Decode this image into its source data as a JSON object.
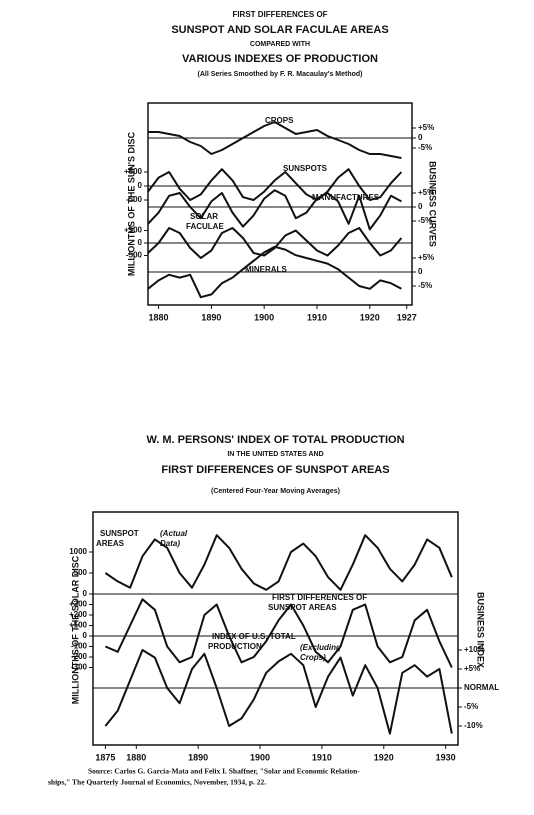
{
  "chart_data": [
    {
      "type": "line",
      "title_lines": [
        "FIRST DIFFERENCES OF",
        "SUNSPOT AND SOLAR FACULAE AREAS",
        "COMPARED WITH",
        "VARIOUS INDEXES OF PRODUCTION",
        "(All Series Smoothed by F. R. Macaulay's Method)"
      ],
      "ylabel": "MILLIONTHS OF THE SUN'S DISC",
      "y2label": "BUSINESS CURVES",
      "x": [
        1878,
        1880,
        1882,
        1884,
        1886,
        1888,
        1890,
        1892,
        1894,
        1896,
        1898,
        1900,
        1902,
        1904,
        1906,
        1908,
        1910,
        1912,
        1914,
        1916,
        1918,
        1920,
        1922,
        1924,
        1926
      ],
      "xlim": [
        1878,
        1928
      ],
      "xticks": [
        1880,
        1890,
        1900,
        1910,
        1920,
        1927
      ],
      "color": "#111111",
      "panels": [
        {
          "label": [
            "CROPS"
          ],
          "axis": "y2",
          "ylim": [
            -12,
            12
          ],
          "ticks": [
            {
              "value": 5,
              "label": "+5%"
            },
            0,
            {
              "value": -5,
              "label": "-5%"
            }
          ],
          "values": [
            3,
            3,
            2,
            1,
            -2,
            -4,
            -8,
            -6,
            -3,
            0,
            3,
            6,
            8,
            5,
            2,
            3,
            4,
            1,
            -1,
            -3,
            -6,
            -8,
            -8,
            -9,
            -10
          ]
        },
        {
          "label": [
            "SUNSPOTS"
          ],
          "axis": "y",
          "ylim": [
            -1000,
            1000
          ],
          "ticks": [
            {
              "value": 500,
              "label": "+500"
            },
            0,
            -500
          ],
          "values": [
            -200,
            300,
            500,
            -100,
            -500,
            -300,
            200,
            600,
            200,
            -400,
            -500,
            -200,
            200,
            500,
            100,
            -300,
            -500,
            -200,
            300,
            600,
            0,
            -500,
            -400,
            100,
            500
          ]
        },
        {
          "label": [
            "MANUFACTURES"
          ],
          "axis": "y2",
          "ylim": [
            -10,
            10
          ],
          "ticks": [
            {
              "value": 5,
              "label": "+5%"
            },
            0,
            {
              "value": -5,
              "label": "-5%"
            }
          ],
          "values": [
            -6,
            -2,
            4,
            5,
            0,
            -4,
            2,
            5,
            -2,
            -7,
            -3,
            3,
            6,
            4,
            -4,
            -2,
            3,
            5,
            2,
            -6,
            4,
            -8,
            -3,
            4,
            2
          ]
        },
        {
          "label": [
            "SOLAR",
            "FACULAE"
          ],
          "axis": "y",
          "ylim": [
            -1000,
            1000
          ],
          "ticks": [
            {
              "value": 500,
              "label": "+500"
            },
            0,
            -500
          ],
          "values": [
            -400,
            0,
            600,
            400,
            -200,
            -600,
            -300,
            400,
            600,
            200,
            -400,
            -500,
            -200,
            300,
            500,
            100,
            -300,
            -500,
            -100,
            400,
            600,
            0,
            -500,
            -300,
            200
          ]
        },
        {
          "label": [
            "MINERALS"
          ],
          "axis": "y2",
          "ylim": [
            -12,
            12
          ],
          "ticks": [
            {
              "value": 5,
              "label": "+5%"
            },
            0,
            {
              "value": -5,
              "label": "-5%"
            }
          ],
          "values": [
            -6,
            -3,
            -1,
            -2,
            -1,
            -9,
            -8,
            -4,
            -2,
            1,
            4,
            7,
            9,
            8,
            6,
            5,
            4,
            3,
            1,
            -2,
            -5,
            -6,
            -3,
            -4,
            -6
          ]
        }
      ]
    },
    {
      "type": "line",
      "title_lines": [
        "W. M. PERSONS' INDEX OF TOTAL PRODUCTION",
        "IN THE UNITED STATES AND",
        "FIRST DIFFERENCES OF SUNSPOT AREAS",
        "(Centered Four-Year Moving Averages)"
      ],
      "ylabel": "MILLIONTHS OF THE SOLAR DISC",
      "y2label": "BUSINESS INDEX",
      "x": [
        1875,
        1877,
        1879,
        1881,
        1883,
        1885,
        1887,
        1889,
        1891,
        1893,
        1895,
        1897,
        1899,
        1901,
        1903,
        1905,
        1907,
        1909,
        1911,
        1913,
        1915,
        1917,
        1919,
        1921,
        1923,
        1925,
        1927,
        1929,
        1931
      ],
      "xlim": [
        1873,
        1932
      ],
      "xticks": [
        1875,
        1880,
        1890,
        1900,
        1910,
        1920,
        1930
      ],
      "color": "#111111",
      "panels": [
        {
          "label": [
            "SUNSPOT",
            "AREAS"
          ],
          "note": [
            "(Actual",
            "Data)"
          ],
          "axis": "y",
          "ylim": [
            0,
            1500
          ],
          "ticks": [
            1000,
            500,
            0
          ],
          "values": [
            500,
            300,
            150,
            900,
            1300,
            1100,
            500,
            150,
            700,
            1400,
            1100,
            600,
            250,
            100,
            300,
            1000,
            1200,
            900,
            400,
            100,
            700,
            1400,
            1100,
            600,
            300,
            700,
            1300,
            1100,
            400
          ]
        },
        {
          "label": [
            "FIRST DIFFERENCES OF",
            "SUNSPOT AREAS"
          ],
          "axis": "y",
          "ylim": [
            -400,
            400
          ],
          "ticks": [
            {
              "value": 300,
              "label": "+300"
            },
            {
              "value": 200,
              "label": "+200"
            },
            {
              "value": 100,
              "label": "+100"
            },
            0,
            -100,
            -200,
            -300
          ],
          "values": [
            -100,
            -150,
            100,
            350,
            250,
            -100,
            -250,
            -200,
            200,
            300,
            0,
            -250,
            -200,
            -50,
            150,
            300,
            100,
            -150,
            -250,
            -100,
            250,
            300,
            -100,
            -250,
            -200,
            150,
            250,
            -50,
            -300
          ]
        },
        {
          "label": [
            "INDEX OF U.S. TOTAL",
            "PRODUCTION"
          ],
          "note": [
            "(Excluding",
            "Crops)"
          ],
          "axis": "y2",
          "ylim": [
            -15,
            15
          ],
          "ticks": [
            {
              "value": 10,
              "label": "+10%"
            },
            {
              "value": 5,
              "label": "+5%"
            },
            {
              "value": 0,
              "label": "NORMAL"
            },
            {
              "value": -5,
              "label": "-5%"
            },
            {
              "value": -10,
              "label": "-10%"
            }
          ],
          "values": [
            -10,
            -6,
            2,
            10,
            8,
            0,
            -4,
            5,
            9,
            0,
            -10,
            -8,
            -3,
            4,
            7,
            9,
            6,
            -5,
            3,
            8,
            -2,
            6,
            0,
            -12,
            4,
            6,
            3,
            5,
            -12
          ]
        }
      ]
    }
  ],
  "source": [
    "Source: Carlos G. Garcia-Mata and Felix I. Shaffner, \"Solar and Economic Relation-",
    "ships,\" The Quarterly Journal of Economics, November, 1934, p. 22."
  ]
}
